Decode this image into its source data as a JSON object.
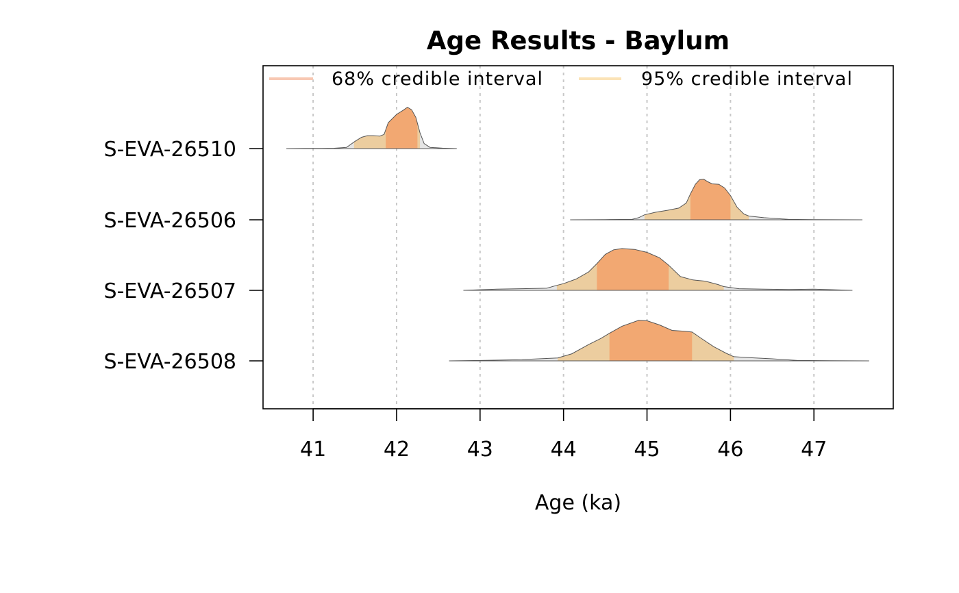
{
  "chart_data": {
    "type": "area",
    "title": "Age Results - Baylum",
    "xlabel": "Age (ka)",
    "xlim": [
      40.4,
      47.95
    ],
    "x_ticks": [
      41,
      42,
      43,
      44,
      45,
      46,
      47
    ],
    "grid": true,
    "legend_position": "top",
    "legend": [
      {
        "label": "68% credible interval",
        "color": "#f8c8b3"
      },
      {
        "label": "95% credible interval",
        "color": "#fbe3b7"
      }
    ],
    "colors": {
      "ci68_fill": "#f2a872",
      "ci95_fill": "#eccd9f",
      "tail_fill": "#e5e5e5",
      "outline": "#555555",
      "grid": "#c8c8c8"
    },
    "samples": [
      {
        "name": "S-EVA-26510",
        "range": [
          40.68,
          42.72
        ],
        "ci95": [
          41.49,
          42.28
        ],
        "ci68": [
          41.87,
          42.25
        ],
        "density": [
          [
            40.68,
            0
          ],
          [
            40.9,
            0.005
          ],
          [
            41.1,
            0.005
          ],
          [
            41.25,
            0.008
          ],
          [
            41.4,
            0.03
          ],
          [
            41.5,
            0.17
          ],
          [
            41.58,
            0.27
          ],
          [
            41.65,
            0.31
          ],
          [
            41.72,
            0.31
          ],
          [
            41.8,
            0.3
          ],
          [
            41.85,
            0.34
          ],
          [
            41.9,
            0.62
          ],
          [
            42.0,
            0.82
          ],
          [
            42.08,
            0.92
          ],
          [
            42.13,
            0.99
          ],
          [
            42.18,
            0.93
          ],
          [
            42.23,
            0.75
          ],
          [
            42.28,
            0.38
          ],
          [
            42.33,
            0.12
          ],
          [
            42.4,
            0.03
          ],
          [
            42.55,
            0.01
          ],
          [
            42.72,
            0
          ]
        ]
      },
      {
        "name": "S-EVA-26506",
        "range": [
          44.08,
          47.58
        ],
        "ci95": [
          44.97,
          46.22
        ],
        "ci68": [
          45.52,
          46.0
        ],
        "density": [
          [
            44.08,
            0
          ],
          [
            44.5,
            0.005
          ],
          [
            44.82,
            0.01
          ],
          [
            44.9,
            0.05
          ],
          [
            44.97,
            0.12
          ],
          [
            45.1,
            0.18
          ],
          [
            45.25,
            0.23
          ],
          [
            45.38,
            0.28
          ],
          [
            45.47,
            0.4
          ],
          [
            45.52,
            0.62
          ],
          [
            45.58,
            0.85
          ],
          [
            45.63,
            0.96
          ],
          [
            45.68,
            0.97
          ],
          [
            45.73,
            0.91
          ],
          [
            45.78,
            0.86
          ],
          [
            45.86,
            0.85
          ],
          [
            45.93,
            0.76
          ],
          [
            46.0,
            0.58
          ],
          [
            46.08,
            0.3
          ],
          [
            46.16,
            0.14
          ],
          [
            46.22,
            0.09
          ],
          [
            46.4,
            0.05
          ],
          [
            46.7,
            0.01
          ],
          [
            47.0,
            0.005
          ],
          [
            47.58,
            0
          ]
        ]
      },
      {
        "name": "S-EVA-26507",
        "range": [
          42.8,
          47.46
        ],
        "ci95": [
          43.92,
          45.92
        ],
        "ci68": [
          44.4,
          45.26
        ],
        "density": [
          [
            42.8,
            0
          ],
          [
            43.2,
            0.03
          ],
          [
            43.5,
            0.04
          ],
          [
            43.8,
            0.05
          ],
          [
            43.92,
            0.12
          ],
          [
            44.0,
            0.16
          ],
          [
            44.15,
            0.27
          ],
          [
            44.3,
            0.44
          ],
          [
            44.4,
            0.64
          ],
          [
            44.5,
            0.86
          ],
          [
            44.6,
            0.97
          ],
          [
            44.7,
            1.0
          ],
          [
            44.85,
            0.98
          ],
          [
            45.0,
            0.91
          ],
          [
            45.15,
            0.78
          ],
          [
            45.26,
            0.6
          ],
          [
            45.4,
            0.33
          ],
          [
            45.55,
            0.25
          ],
          [
            45.7,
            0.22
          ],
          [
            45.85,
            0.14
          ],
          [
            45.92,
            0.09
          ],
          [
            46.1,
            0.04
          ],
          [
            46.4,
            0.03
          ],
          [
            46.7,
            0.02
          ],
          [
            47.0,
            0.03
          ],
          [
            47.46,
            0
          ]
        ]
      },
      {
        "name": "S-EVA-26508",
        "range": [
          42.63,
          47.66
        ],
        "ci95": [
          43.93,
          46.04
        ],
        "ci68": [
          44.55,
          45.54
        ],
        "density": [
          [
            42.63,
            0
          ],
          [
            43.0,
            0.01
          ],
          [
            43.5,
            0.03
          ],
          [
            43.93,
            0.07
          ],
          [
            44.1,
            0.17
          ],
          [
            44.3,
            0.39
          ],
          [
            44.45,
            0.54
          ],
          [
            44.55,
            0.66
          ],
          [
            44.7,
            0.83
          ],
          [
            44.9,
            0.97
          ],
          [
            45.0,
            0.96
          ],
          [
            45.15,
            0.86
          ],
          [
            45.3,
            0.73
          ],
          [
            45.45,
            0.71
          ],
          [
            45.54,
            0.69
          ],
          [
            45.65,
            0.54
          ],
          [
            45.8,
            0.34
          ],
          [
            45.95,
            0.18
          ],
          [
            46.04,
            0.1
          ],
          [
            46.2,
            0.08
          ],
          [
            46.5,
            0.05
          ],
          [
            46.8,
            0.01
          ],
          [
            47.2,
            0.005
          ],
          [
            47.66,
            0
          ]
        ]
      }
    ]
  }
}
